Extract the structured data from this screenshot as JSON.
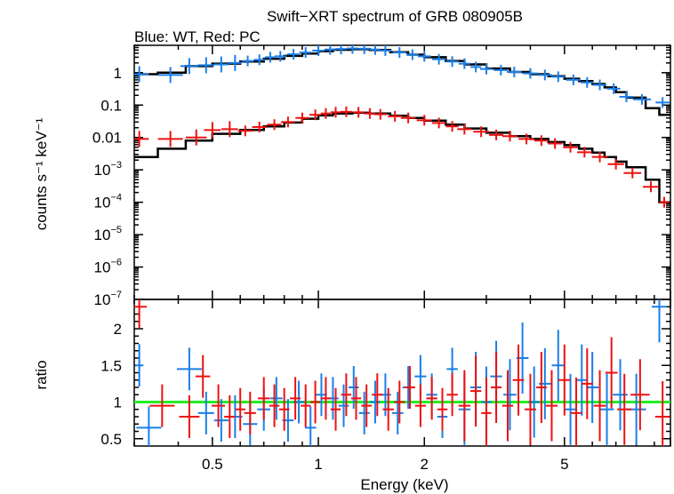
{
  "title": "Swift−XRT spectrum of GRB 080905B",
  "subtitle": "Blue: WT, Red: PC",
  "colors": {
    "wt": "#1a7fe8",
    "pc": "#ee1111",
    "model": "#000000",
    "unity": "#22ee22",
    "frame": "#000000"
  },
  "chart_data": [
    {
      "type": "scatter",
      "panel": "spectrum",
      "title": "Swift−XRT spectrum of GRB 080905B",
      "subtitle": "Blue: WT, Red: PC",
      "xlabel": "Energy (keV)",
      "ylabel": "counts s⁻¹ keV⁻¹",
      "xscale": "log",
      "yscale": "log",
      "xlim": [
        0.3,
        10
      ],
      "ylim": [
        1e-07,
        7
      ],
      "yticks": [
        {
          "v": 1,
          "label": "1"
        },
        {
          "v": 0.1,
          "label": "0.1"
        },
        {
          "v": 0.01,
          "label": "0.01"
        },
        {
          "v": 0.001,
          "base": "10",
          "exp": "−3"
        },
        {
          "v": 0.0001,
          "base": "10",
          "exp": "−4"
        },
        {
          "v": 1e-05,
          "base": "10",
          "exp": "−5"
        },
        {
          "v": 1e-06,
          "base": "10",
          "exp": "−6"
        },
        {
          "v": 1e-07,
          "base": "10",
          "exp": "−7"
        }
      ],
      "series": [
        {
          "key": "wt",
          "points": [
            [
              0.31,
              0.9
            ],
            [
              0.38,
              0.85
            ],
            [
              0.43,
              1.6
            ],
            [
              0.48,
              1.7
            ],
            [
              0.53,
              1.8
            ],
            [
              0.58,
              2.0
            ],
            [
              0.63,
              2.3
            ],
            [
              0.68,
              2.5
            ],
            [
              0.73,
              3.0
            ],
            [
              0.78,
              3.2
            ],
            [
              0.85,
              3.7
            ],
            [
              0.92,
              4.2
            ],
            [
              1.0,
              4.8
            ],
            [
              1.08,
              5.2
            ],
            [
              1.16,
              5.4
            ],
            [
              1.25,
              5.6
            ],
            [
              1.35,
              5.5
            ],
            [
              1.45,
              5.2
            ],
            [
              1.55,
              4.8
            ],
            [
              1.7,
              4.2
            ],
            [
              1.85,
              3.6
            ],
            [
              2.0,
              3.2
            ],
            [
              2.2,
              2.6
            ],
            [
              2.4,
              2.2
            ],
            [
              2.6,
              1.9
            ],
            [
              2.8,
              1.5
            ],
            [
              3.0,
              1.3
            ],
            [
              3.3,
              1.2
            ],
            [
              3.6,
              1.05
            ],
            [
              4.0,
              0.95
            ],
            [
              4.4,
              0.85
            ],
            [
              4.8,
              0.75
            ],
            [
              5.3,
              0.6
            ],
            [
              5.8,
              0.5
            ],
            [
              6.3,
              0.42
            ],
            [
              6.9,
              0.32
            ],
            [
              7.5,
              0.18
            ],
            [
              8.3,
              0.15
            ],
            [
              9.5,
              0.12
            ]
          ]
        },
        {
          "key": "pc",
          "points": [
            [
              0.31,
              0.009
            ],
            [
              0.38,
              0.009
            ],
            [
              0.45,
              0.01
            ],
            [
              0.5,
              0.017
            ],
            [
              0.56,
              0.018
            ],
            [
              0.62,
              0.016
            ],
            [
              0.68,
              0.021
            ],
            [
              0.75,
              0.025
            ],
            [
              0.82,
              0.03
            ],
            [
              0.9,
              0.04
            ],
            [
              0.98,
              0.05
            ],
            [
              1.05,
              0.055
            ],
            [
              1.12,
              0.06
            ],
            [
              1.2,
              0.062
            ],
            [
              1.3,
              0.06
            ],
            [
              1.4,
              0.055
            ],
            [
              1.5,
              0.052
            ],
            [
              1.65,
              0.045
            ],
            [
              1.8,
              0.04
            ],
            [
              2.0,
              0.034
            ],
            [
              2.2,
              0.028
            ],
            [
              2.4,
              0.022
            ],
            [
              2.6,
              0.018
            ],
            [
              2.9,
              0.015
            ],
            [
              3.2,
              0.012
            ],
            [
              3.5,
              0.011
            ],
            [
              3.9,
              0.009
            ],
            [
              4.3,
              0.008
            ],
            [
              4.7,
              0.0065
            ],
            [
              5.2,
              0.005
            ],
            [
              5.7,
              0.0035
            ],
            [
              6.3,
              0.0025
            ],
            [
              7.0,
              0.0015
            ],
            [
              7.8,
              0.0008
            ],
            [
              8.8,
              0.0003
            ],
            [
              9.6,
              0.0001
            ]
          ]
        }
      ],
      "models": [
        {
          "key": "wt",
          "steps": [
            [
              0.3,
              0.9
            ],
            [
              0.35,
              1.0
            ],
            [
              0.42,
              1.6
            ],
            [
              0.5,
              1.9
            ],
            [
              0.6,
              2.2
            ],
            [
              0.7,
              2.7
            ],
            [
              0.8,
              3.3
            ],
            [
              0.9,
              3.9
            ],
            [
              1.0,
              4.6
            ],
            [
              1.1,
              5.1
            ],
            [
              1.25,
              5.3
            ],
            [
              1.4,
              5.0
            ],
            [
              1.6,
              4.3
            ],
            [
              1.8,
              3.6
            ],
            [
              2.0,
              3.0
            ],
            [
              2.3,
              2.3
            ],
            [
              2.6,
              1.8
            ],
            [
              3.0,
              1.35
            ],
            [
              3.5,
              1.05
            ],
            [
              4.0,
              0.9
            ],
            [
              4.5,
              0.78
            ],
            [
              5.0,
              0.65
            ],
            [
              5.5,
              0.55
            ],
            [
              6.0,
              0.45
            ],
            [
              6.5,
              0.35
            ],
            [
              7.0,
              0.25
            ],
            [
              7.5,
              0.17
            ],
            [
              8.5,
              0.08
            ],
            [
              9.3,
              0.05
            ],
            [
              10.0,
              0.05
            ]
          ]
        },
        {
          "key": "pc",
          "steps": [
            [
              0.3,
              0.0025
            ],
            [
              0.35,
              0.0045
            ],
            [
              0.42,
              0.008
            ],
            [
              0.5,
              0.013
            ],
            [
              0.6,
              0.017
            ],
            [
              0.7,
              0.022
            ],
            [
              0.8,
              0.029
            ],
            [
              0.9,
              0.038
            ],
            [
              1.0,
              0.048
            ],
            [
              1.1,
              0.055
            ],
            [
              1.25,
              0.058
            ],
            [
              1.4,
              0.055
            ],
            [
              1.6,
              0.047
            ],
            [
              1.8,
              0.04
            ],
            [
              2.0,
              0.033
            ],
            [
              2.3,
              0.025
            ],
            [
              2.6,
              0.019
            ],
            [
              3.0,
              0.014
            ],
            [
              3.5,
              0.011
            ],
            [
              4.0,
              0.009
            ],
            [
              4.5,
              0.0072
            ],
            [
              5.0,
              0.0058
            ],
            [
              5.5,
              0.0045
            ],
            [
              6.0,
              0.0034
            ],
            [
              6.5,
              0.0025
            ],
            [
              7.0,
              0.0018
            ],
            [
              7.5,
              0.0012
            ],
            [
              8.5,
              0.0005
            ],
            [
              9.3,
              0.0001
            ],
            [
              10.0,
              0.0001
            ]
          ]
        }
      ]
    },
    {
      "type": "scatter",
      "panel": "ratio",
      "xlabel": "Energy (keV)",
      "ylabel": "ratio",
      "xscale": "log",
      "xlim": [
        0.3,
        10
      ],
      "ylim": [
        0.4,
        2.4
      ],
      "xticks": [
        {
          "v": 0.5,
          "label": "0.5"
        },
        {
          "v": 1,
          "label": "1"
        },
        {
          "v": 2,
          "label": "2"
        },
        {
          "v": 5,
          "label": "5"
        }
      ],
      "yticks": [
        {
          "v": 0.5,
          "label": "0.5"
        },
        {
          "v": 1,
          "label": "1"
        },
        {
          "v": 1.5,
          "label": "1.5"
        },
        {
          "v": 2,
          "label": "2"
        }
      ],
      "unity": 1,
      "series": [
        {
          "key": "wt",
          "points": [
            [
              0.31,
              1.5
            ],
            [
              0.33,
              0.65
            ],
            [
              0.43,
              1.45
            ],
            [
              0.48,
              0.85
            ],
            [
              0.53,
              0.75
            ],
            [
              0.58,
              0.8
            ],
            [
              0.64,
              0.7
            ],
            [
              0.7,
              0.9
            ],
            [
              0.76,
              1.05
            ],
            [
              0.82,
              0.75
            ],
            [
              0.88,
              1.0
            ],
            [
              0.95,
              0.65
            ],
            [
              1.02,
              1.1
            ],
            [
              1.1,
              1.05
            ],
            [
              1.18,
              0.95
            ],
            [
              1.26,
              1.2
            ],
            [
              1.35,
              0.85
            ],
            [
              1.45,
              1.0
            ],
            [
              1.55,
              1.1
            ],
            [
              1.68,
              0.85
            ],
            [
              1.8,
              1.2
            ],
            [
              1.95,
              1.35
            ],
            [
              2.1,
              1.1
            ],
            [
              2.25,
              0.8
            ],
            [
              2.4,
              1.45
            ],
            [
              2.6,
              0.9
            ],
            [
              2.8,
              1.2
            ],
            [
              3.0,
              1.0
            ],
            [
              3.2,
              1.35
            ],
            [
              3.5,
              1.1
            ],
            [
              3.8,
              1.6
            ],
            [
              4.1,
              1.0
            ],
            [
              4.4,
              1.25
            ],
            [
              4.8,
              1.5
            ],
            [
              5.2,
              0.9
            ],
            [
              5.6,
              1.3
            ],
            [
              6.0,
              1.2
            ],
            [
              6.6,
              0.9
            ],
            [
              7.2,
              1.1
            ],
            [
              8.0,
              0.9
            ],
            [
              9.3,
              2.3
            ]
          ]
        },
        {
          "key": "pc",
          "points": [
            [
              0.31,
              2.3
            ],
            [
              0.36,
              0.95
            ],
            [
              0.43,
              0.8
            ],
            [
              0.47,
              1.35
            ],
            [
              0.52,
              0.95
            ],
            [
              0.56,
              0.8
            ],
            [
              0.6,
              0.9
            ],
            [
              0.64,
              0.85
            ],
            [
              0.7,
              1.05
            ],
            [
              0.75,
              0.95
            ],
            [
              0.8,
              0.9
            ],
            [
              0.86,
              1.05
            ],
            [
              0.92,
              0.95
            ],
            [
              0.98,
              1.0
            ],
            [
              1.05,
              1.05
            ],
            [
              1.12,
              0.9
            ],
            [
              1.2,
              1.1
            ],
            [
              1.28,
              1.05
            ],
            [
              1.37,
              0.95
            ],
            [
              1.47,
              1.1
            ],
            [
              1.58,
              0.9
            ],
            [
              1.7,
              1.0
            ],
            [
              1.82,
              1.2
            ],
            [
              1.95,
              0.95
            ],
            [
              2.1,
              1.05
            ],
            [
              2.25,
              0.9
            ],
            [
              2.4,
              1.1
            ],
            [
              2.6,
              0.95
            ],
            [
              2.8,
              1.15
            ],
            [
              3.0,
              0.85
            ],
            [
              3.2,
              1.2
            ],
            [
              3.45,
              0.95
            ],
            [
              3.7,
              1.3
            ],
            [
              4.0,
              0.9
            ],
            [
              4.3,
              1.2
            ],
            [
              4.6,
              0.95
            ],
            [
              5.0,
              1.3
            ],
            [
              5.4,
              0.85
            ],
            [
              5.8,
              1.25
            ],
            [
              6.3,
              0.95
            ],
            [
              6.8,
              1.4
            ],
            [
              7.4,
              0.9
            ],
            [
              8.2,
              1.1
            ],
            [
              9.5,
              0.8
            ]
          ]
        }
      ]
    }
  ]
}
